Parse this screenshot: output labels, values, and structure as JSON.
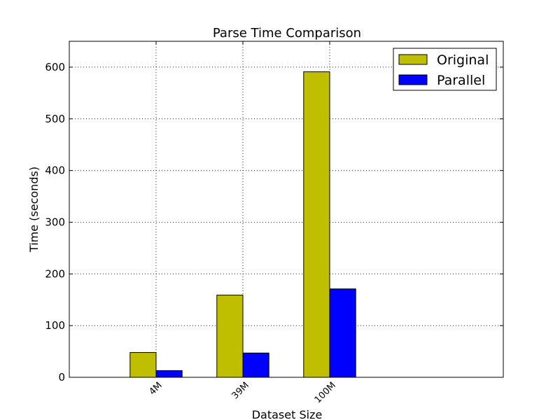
{
  "chart_data": {
    "type": "bar",
    "title": "Parse Time Comparison",
    "xlabel": "Dataset Size",
    "ylabel": "Time (seconds)",
    "categories": [
      "4M",
      "39M",
      "100M"
    ],
    "series": [
      {
        "name": "Original",
        "color": "#bfbf00",
        "values": [
          48,
          159,
          591
        ]
      },
      {
        "name": "Parallel",
        "color": "#0000ff",
        "values": [
          13,
          47,
          171
        ]
      }
    ],
    "ylim": [
      0,
      650
    ],
    "yticks": [
      0,
      100,
      200,
      300,
      400,
      500,
      600
    ],
    "grid": true,
    "legend": "upper right"
  }
}
